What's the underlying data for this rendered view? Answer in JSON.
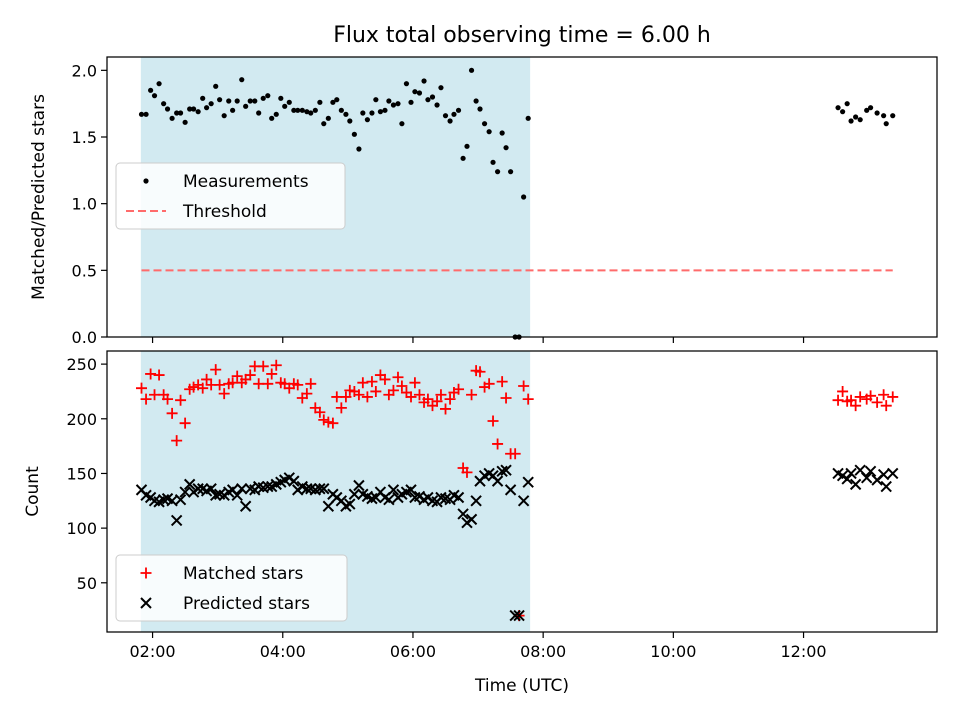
{
  "chart_data": {
    "title": "Flux total observing time = 6.00 h",
    "xlabel": "Time (UTC)",
    "x_unit": "hours UTC",
    "xlim": [
      1.3,
      14.05
    ],
    "x_ticks": [
      2,
      4,
      6,
      8,
      10,
      12
    ],
    "x_tick_labels": [
      "02:00",
      "04:00",
      "06:00",
      "08:00",
      "10:00",
      "12:00"
    ],
    "observing_window": [
      1.82,
      7.8
    ],
    "colors": {
      "window": "#add8e6",
      "measurements": "#000000",
      "threshold": "#ff6b6b",
      "matched": "#ff0000",
      "predicted": "#000000"
    },
    "panels": [
      {
        "type": "scatter",
        "ylabel": "Matched/Predicted stars",
        "ylim": [
          0,
          2.1
        ],
        "y_ticks": [
          0,
          0.5,
          1,
          1.5,
          2
        ],
        "y_tick_labels": [
          "0.0",
          "0.5",
          "1.0",
          "1.5",
          "2.0"
        ],
        "legend": {
          "placement": "center-left",
          "entries": [
            "Measurements",
            "Threshold"
          ]
        },
        "series": [
          {
            "name": "Measurements",
            "marker": "dot",
            "x": [
              1.83,
              1.9,
              1.97,
              2.03,
              2.1,
              2.17,
              2.23,
              2.3,
              2.37,
              2.43,
              2.5,
              2.57,
              2.63,
              2.7,
              2.77,
              2.83,
              2.9,
              2.97,
              3.03,
              3.1,
              3.17,
              3.23,
              3.3,
              3.37,
              3.43,
              3.5,
              3.57,
              3.63,
              3.7,
              3.77,
              3.83,
              3.9,
              3.97,
              4.03,
              4.1,
              4.17,
              4.23,
              4.3,
              4.37,
              4.43,
              4.5,
              4.57,
              4.63,
              4.7,
              4.77,
              4.83,
              4.9,
              4.97,
              5.03,
              5.1,
              5.17,
              5.23,
              5.3,
              5.37,
              5.43,
              5.5,
              5.57,
              5.63,
              5.7,
              5.77,
              5.83,
              5.9,
              5.97,
              6.03,
              6.1,
              6.17,
              6.23,
              6.3,
              6.37,
              6.43,
              6.5,
              6.57,
              6.63,
              6.7,
              6.77,
              6.83,
              6.9,
              6.97,
              7.03,
              7.1,
              7.17,
              7.23,
              7.3,
              7.37,
              7.43,
              7.5,
              7.57,
              7.63,
              7.7,
              7.77,
              12.53,
              12.6,
              12.67,
              12.73,
              12.8,
              12.87,
              12.97,
              13.03,
              13.13,
              13.23,
              13.27,
              13.37
            ],
            "y": [
              1.67,
              1.67,
              1.85,
              1.81,
              1.9,
              1.75,
              1.71,
              1.64,
              1.68,
              1.68,
              1.61,
              1.71,
              1.71,
              1.69,
              1.79,
              1.72,
              1.75,
              1.88,
              1.78,
              1.66,
              1.77,
              1.7,
              1.77,
              1.93,
              1.73,
              1.77,
              1.77,
              1.68,
              1.79,
              1.81,
              1.64,
              1.67,
              1.79,
              1.73,
              1.76,
              1.7,
              1.7,
              1.7,
              1.69,
              1.68,
              1.7,
              1.76,
              1.6,
              1.64,
              1.76,
              1.78,
              1.7,
              1.67,
              1.62,
              1.52,
              1.41,
              1.68,
              1.63,
              1.68,
              1.78,
              1.69,
              1.7,
              1.77,
              1.74,
              1.75,
              1.6,
              1.9,
              1.76,
              1.84,
              1.83,
              1.92,
              1.78,
              1.8,
              1.74,
              1.87,
              1.66,
              1.62,
              1.67,
              1.7,
              1.34,
              1.43,
              2.0,
              1.77,
              1.71,
              1.6,
              1.54,
              1.31,
              1.24,
              1.53,
              1.42,
              1.24,
              0.0,
              0.0,
              1.05,
              1.64,
              1.72,
              1.69,
              1.75,
              1.62,
              1.65,
              1.63,
              1.7,
              1.72,
              1.68,
              1.66,
              1.6,
              1.66
            ]
          },
          {
            "name": "Threshold",
            "style": "dashed",
            "x": [
              1.83,
              13.37
            ],
            "y": [
              0.5,
              0.5
            ]
          }
        ]
      },
      {
        "type": "scatter",
        "ylabel": "Count",
        "ylim": [
          5,
          262
        ],
        "y_ticks": [
          50,
          100,
          150,
          200,
          250
        ],
        "y_tick_labels": [
          "50",
          "100",
          "150",
          "200",
          "250"
        ],
        "legend": {
          "placement": "lower-left",
          "entries": [
            "Matched stars",
            "Predicted stars"
          ]
        },
        "series": [
          {
            "name": "Matched stars",
            "marker": "plus",
            "x": [
              1.83,
              1.9,
              1.97,
              2.03,
              2.1,
              2.17,
              2.23,
              2.3,
              2.37,
              2.43,
              2.5,
              2.57,
              2.63,
              2.7,
              2.77,
              2.83,
              2.9,
              2.97,
              3.03,
              3.1,
              3.17,
              3.23,
              3.3,
              3.37,
              3.43,
              3.5,
              3.57,
              3.63,
              3.7,
              3.77,
              3.83,
              3.9,
              3.97,
              4.03,
              4.1,
              4.17,
              4.23,
              4.3,
              4.37,
              4.43,
              4.5,
              4.57,
              4.63,
              4.7,
              4.77,
              4.83,
              4.9,
              4.97,
              5.03,
              5.1,
              5.17,
              5.23,
              5.3,
              5.37,
              5.43,
              5.5,
              5.57,
              5.63,
              5.7,
              5.77,
              5.83,
              5.9,
              5.97,
              6.03,
              6.1,
              6.17,
              6.23,
              6.3,
              6.37,
              6.43,
              6.5,
              6.57,
              6.63,
              6.7,
              6.77,
              6.83,
              6.9,
              6.97,
              7.03,
              7.1,
              7.17,
              7.23,
              7.3,
              7.37,
              7.43,
              7.5,
              7.57,
              7.63,
              7.7,
              7.77,
              12.53,
              12.6,
              12.67,
              12.73,
              12.8,
              12.87,
              12.97,
              13.03,
              13.13,
              13.23,
              13.27,
              13.37
            ],
            "y": [
              228,
              218,
              241,
              222,
              240,
              222,
              218,
              205,
              180,
              217,
              196,
              227,
              229,
              231,
              228,
              236,
              231,
              245,
              231,
              223,
              232,
              233,
              239,
              233,
              236,
              240,
              248,
              232,
              248,
              232,
              241,
              249,
              233,
              232,
              228,
              232,
              231,
              219,
              223,
              232,
              210,
              206,
              199,
              197,
              196,
              220,
              210,
              220,
              226,
              225,
              222,
              233,
              220,
              234,
              225,
              240,
              236,
              222,
              226,
              238,
              230,
              224,
              220,
              233,
              222,
              215,
              218,
              212,
              216,
              222,
              209,
              218,
              224,
              227,
              155,
              151,
              222,
              244,
              243,
              229,
              232,
              198,
              177,
              234,
              219,
              168,
              168,
              20,
              230,
              218,
              217,
              225,
              216,
              217,
              212,
              220,
              218,
              221,
              215,
              222,
              212,
              220
            ]
          },
          {
            "name": "Predicted stars",
            "marker": "x",
            "x": [
              1.83,
              1.9,
              1.97,
              2.03,
              2.1,
              2.17,
              2.23,
              2.3,
              2.37,
              2.43,
              2.5,
              2.57,
              2.63,
              2.7,
              2.77,
              2.83,
              2.9,
              2.97,
              3.03,
              3.1,
              3.17,
              3.23,
              3.3,
              3.37,
              3.43,
              3.5,
              3.57,
              3.63,
              3.7,
              3.77,
              3.83,
              3.9,
              3.97,
              4.03,
              4.1,
              4.17,
              4.23,
              4.3,
              4.37,
              4.43,
              4.5,
              4.57,
              4.63,
              4.7,
              4.77,
              4.83,
              4.9,
              4.97,
              5.03,
              5.1,
              5.17,
              5.23,
              5.3,
              5.37,
              5.43,
              5.5,
              5.57,
              5.63,
              5.7,
              5.77,
              5.83,
              5.9,
              5.97,
              6.03,
              6.1,
              6.17,
              6.23,
              6.3,
              6.37,
              6.43,
              6.5,
              6.57,
              6.63,
              6.7,
              6.77,
              6.83,
              6.9,
              6.97,
              7.03,
              7.1,
              7.17,
              7.23,
              7.3,
              7.37,
              7.43,
              7.5,
              7.57,
              7.63,
              7.7,
              7.77,
              12.53,
              12.6,
              12.67,
              12.73,
              12.8,
              12.87,
              12.97,
              13.03,
              13.13,
              13.23,
              13.27,
              13.37
            ],
            "y": [
              135,
              130,
              128,
              125,
              124,
              126,
              127,
              125,
              107,
              126,
              133,
              140,
              133,
              136,
              136,
              134,
              136,
              130,
              131,
              130,
              133,
              135,
              130,
              136,
              120,
              136,
              135,
              138,
              137,
              138,
              138,
              140,
              142,
              144,
              146,
              143,
              135,
              138,
              136,
              136,
              135,
              136,
              136,
              120,
              131,
              128,
              125,
              120,
              122,
              131,
              139,
              131,
              129,
              127,
              128,
              133,
              128,
              126,
              135,
              128,
              131,
              133,
              135,
              128,
              129,
              126,
              128,
              125,
              124,
              128,
              127,
              126,
              130,
              128,
              113,
              105,
              108,
              125,
              143,
              148,
              150,
              148,
              143,
              152,
              153,
              135,
              20,
              20,
              125,
              142,
              150,
              148,
              145,
              150,
              140,
              153,
              146,
              152,
              144,
              149,
              138,
              150
            ]
          }
        ]
      }
    ]
  }
}
